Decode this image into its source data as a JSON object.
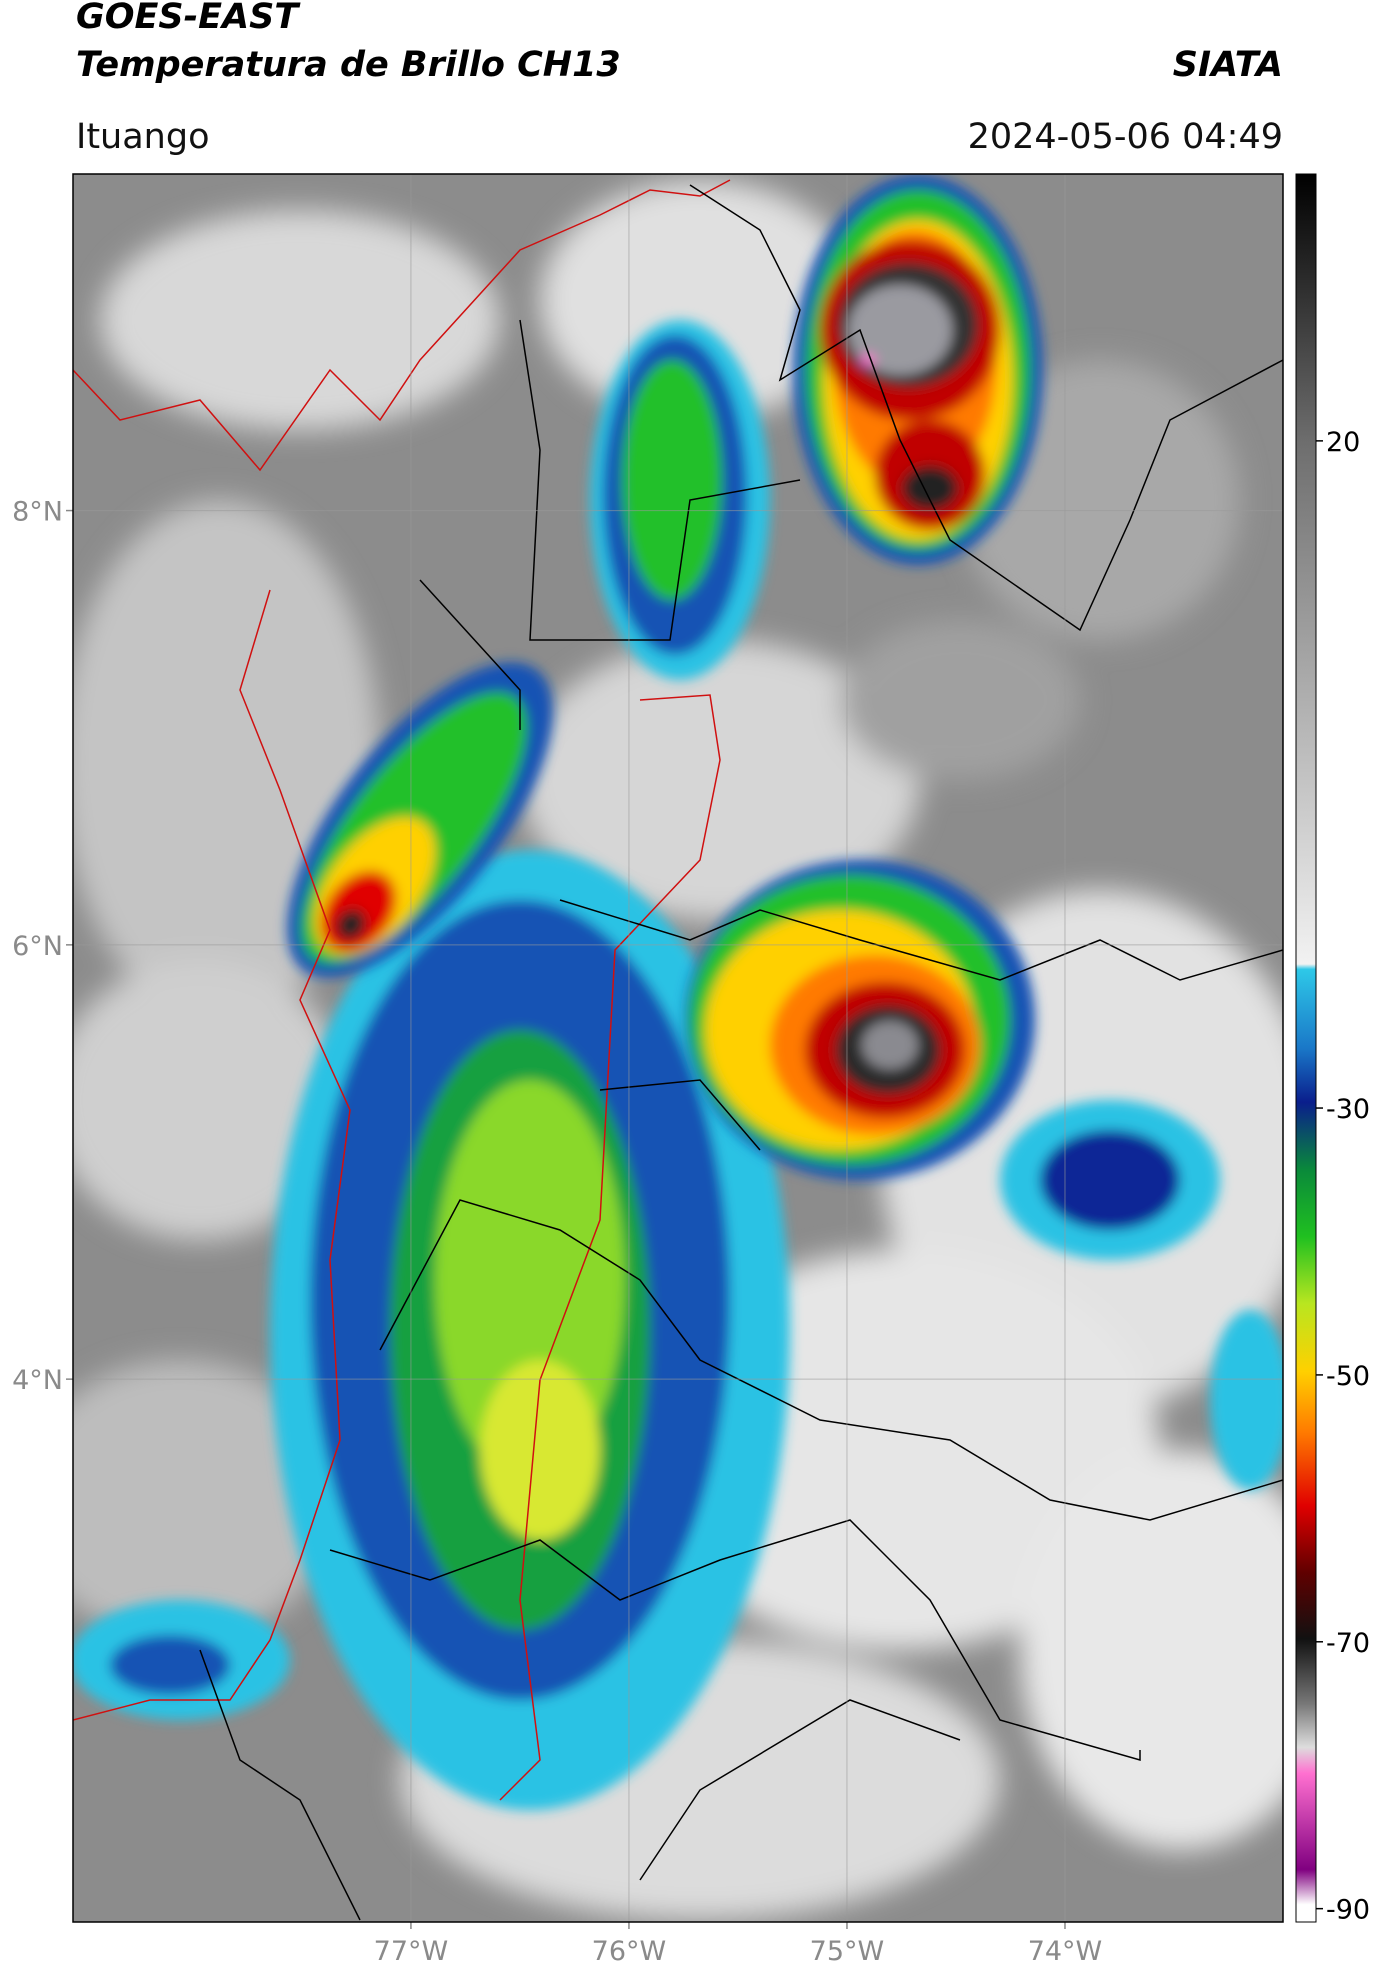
{
  "header": {
    "title": "GOES-EAST",
    "subtitle": "Temperatura de Brillo CH13",
    "source": "SIATA",
    "location": "Ituango",
    "datetime": "2024-05-06 04:49"
  },
  "map": {
    "latlim": [
      1.5,
      9.55
    ],
    "lonlim": [
      -78.55,
      -73.0
    ],
    "lat_ticks": [
      {
        "value": 8,
        "label": "8°N"
      },
      {
        "value": 6,
        "label": "6°N"
      },
      {
        "value": 4,
        "label": "4°N"
      }
    ],
    "lon_ticks": [
      {
        "value": -77,
        "label": "77°W"
      },
      {
        "value": -76,
        "label": "76°W"
      },
      {
        "value": -75,
        "label": "75°W"
      },
      {
        "value": -74,
        "label": "74°W"
      }
    ]
  },
  "colorbar": {
    "lim": [
      -91,
      40
    ],
    "ticks": [
      20,
      -30,
      -50,
      -70,
      -90
    ]
  }
}
